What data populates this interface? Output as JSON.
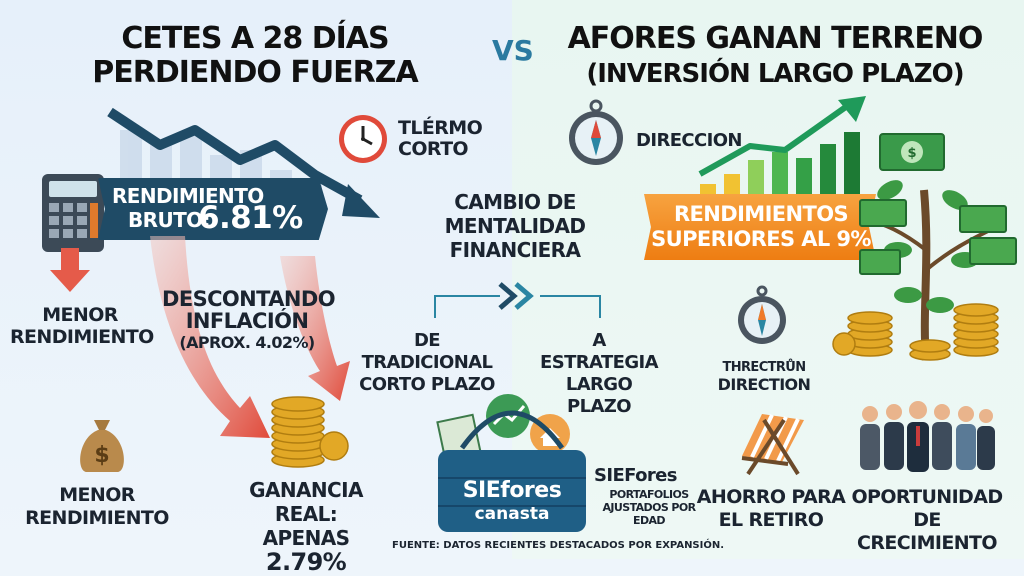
{
  "left": {
    "title_line1": "CETES A 28 DÍAS",
    "title_line2": "PERDIENDO FUERZA",
    "term_label_line1": "TLÉRMO",
    "term_label_line2": "CORTO",
    "rendimiento_label": "RENDIMIENTO",
    "bruto_label": "BRUTO:",
    "bruto_value": "6.81%",
    "menor1_line1": "MENOR",
    "menor1_line2": "RENDIMIENTO",
    "descontando_line1": "DESCONTANDO",
    "descontando_line2": "INFLACIÓN",
    "descontando_line3": "(APROX. 4.02%)",
    "menor2_line1": "MENOR",
    "menor2_line2": "RENDIMIENTO",
    "ganancia_line1": "GANANCIA REAL:",
    "ganancia_prefix": "APENAS",
    "ganancia_value": "2.79%"
  },
  "vs": "VS",
  "center": {
    "cambio_line1": "CAMBIO DE",
    "cambio_line2": "MENTALIDAD",
    "cambio_line3": "FINANCIERA",
    "de_line1": "DE TRADICIONAL",
    "de_line2": "CORTO PLAZO",
    "a_line1": "A ESTRATEGIA",
    "a_line2": "LARGO PLAZO",
    "basket_line1": "SIEfores",
    "basket_line2": "canasta",
    "siefores_title": "SIEFores",
    "siefores_line1": "PORTAFOLIOS",
    "siefores_line2": "AJUSTADOS POR",
    "siefores_line3": "EDAD",
    "source": "FUENTE: DATOS RECIENTES DESTACADOS POR EXPANSIÓN."
  },
  "right": {
    "title_line1": "AFORES GANAN TERRENO",
    "title_line2": "(INVERSIÓN LARGO PLAZO)",
    "direccion": "DIRECCION",
    "banner_line1": "RENDIMIENTOS",
    "banner_line2": "SUPERIORES AL 9%",
    "thrector_line1": "THRECTRŮN",
    "thrector_line2": "DIRECTION",
    "ahorro_line1": "AHORRO PARA",
    "ahorro_line2": "EL RETIRO",
    "oportunidad_line1": "OPORTUNIDAD",
    "oportunidad_line2": "DE CRECIMIENTO"
  },
  "colors": {
    "navy": "#1f4b66",
    "orange": "#ef8a1e",
    "green": "#2e9e48",
    "teal": "#2a86a3",
    "red": "#e04a3a",
    "gold": "#e2a826"
  },
  "icons": [
    "clock-icon",
    "calculator-icon",
    "money-bag-icon",
    "coins-icon",
    "compass-icon",
    "basket-icon",
    "money-tree-icon",
    "beach-chair-icon",
    "people-group-icon",
    "growth-chart-icon"
  ]
}
